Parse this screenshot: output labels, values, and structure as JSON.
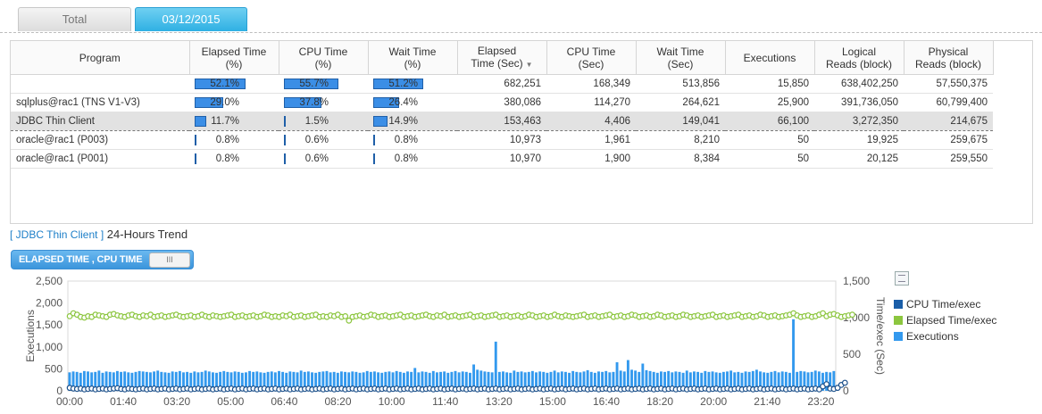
{
  "tabs": [
    {
      "label": "Total"
    },
    {
      "label": "03/12/2015"
    }
  ],
  "table": {
    "columns": [
      "Program",
      "Elapsed Time\n(%)",
      "CPU Time\n(%)",
      "Wait Time\n(%)",
      "Elapsed\nTime (Sec)",
      "CPU Time\n(Sec)",
      "Wait Time\n(Sec)",
      "Executions",
      "Logical\nReads (block)",
      "Physical\nReads (block)"
    ],
    "rows": [
      {
        "program": "",
        "elapsed_pct": "52.1%",
        "elapsed_frac": 0.521,
        "cpu_pct": "55.7%",
        "cpu_frac": 0.557,
        "wait_pct": "51.2%",
        "wait_frac": 0.512,
        "elapsed_sec": "682,251",
        "cpu_sec": "168,349",
        "wait_sec": "513,856",
        "executions": "15,850",
        "logical": "638,402,250",
        "physical": "57,550,375"
      },
      {
        "program": "sqlplus@rac1 (TNS V1-V3)",
        "elapsed_pct": "29.0%",
        "elapsed_frac": 0.29,
        "cpu_pct": "37.8%",
        "cpu_frac": 0.378,
        "wait_pct": "26.4%",
        "wait_frac": 0.264,
        "elapsed_sec": "380,086",
        "cpu_sec": "114,270",
        "wait_sec": "264,621",
        "executions": "25,900",
        "logical": "391,736,050",
        "physical": "60,799,400"
      },
      {
        "program": "JDBC Thin Client",
        "elapsed_pct": "11.7%",
        "elapsed_frac": 0.117,
        "cpu_pct": "1.5%",
        "cpu_frac": 0.015,
        "wait_pct": "14.9%",
        "wait_frac": 0.149,
        "elapsed_sec": "153,463",
        "cpu_sec": "4,406",
        "wait_sec": "149,041",
        "executions": "66,100",
        "logical": "3,272,350",
        "physical": "214,675"
      },
      {
        "program": "oracle@rac1 (P003)",
        "elapsed_pct": "0.8%",
        "elapsed_frac": 0.008,
        "cpu_pct": "0.6%",
        "cpu_frac": 0.006,
        "wait_pct": "0.8%",
        "wait_frac": 0.008,
        "elapsed_sec": "10,973",
        "cpu_sec": "1,961",
        "wait_sec": "8,210",
        "executions": "50",
        "logical": "19,925",
        "physical": "259,675"
      },
      {
        "program": "oracle@rac1 (P001)",
        "elapsed_pct": "0.8%",
        "elapsed_frac": 0.008,
        "cpu_pct": "0.6%",
        "cpu_frac": 0.006,
        "wait_pct": "0.8%",
        "wait_frac": 0.008,
        "elapsed_sec": "10,970",
        "cpu_sec": "1,900",
        "wait_sec": "8,384",
        "executions": "50",
        "logical": "20,125",
        "physical": "259,550"
      }
    ],
    "selected_row": 2
  },
  "trend": {
    "context": "[ JDBC Thin Client ]",
    "title": "24-Hours Trend",
    "toggle_label": "ELAPSED TIME , CPU TIME",
    "toggle_knob": "III"
  },
  "chart_data": {
    "type": "bar",
    "x_ticks": [
      "00:00",
      "01:40",
      "03:20",
      "05:00",
      "06:40",
      "08:20",
      "10:00",
      "11:40",
      "13:20",
      "15:00",
      "16:40",
      "18:20",
      "20:00",
      "21:40",
      "23:20"
    ],
    "y_left": {
      "label": "Executions",
      "ticks": [
        "0",
        "500",
        "1,000",
        "1,500",
        "2,000",
        "2,500"
      ],
      "range": [
        0,
        2500
      ]
    },
    "y_right": {
      "label": "Time/exec (Sec)",
      "ticks": [
        "0",
        "500",
        "1,000",
        "1,500"
      ],
      "range": [
        0,
        1500
      ]
    },
    "legend": [
      {
        "name": "CPU Time/exec",
        "color": "#1a5ea8"
      },
      {
        "name": "Elapsed Time/exec",
        "color": "#8cc63f"
      },
      {
        "name": "Executions",
        "color": "#3399ee"
      }
    ],
    "executions": [
      420,
      440,
      430,
      410,
      450,
      440,
      420,
      430,
      460,
      410,
      440,
      430,
      420,
      450,
      430,
      440,
      420,
      410,
      430,
      450,
      440,
      430,
      420,
      440,
      460,
      430,
      420,
      410,
      440,
      430,
      450,
      420,
      430,
      410,
      440,
      420,
      430,
      460,
      440,
      420,
      410,
      430,
      450,
      430,
      420,
      440,
      430,
      410,
      420,
      450,
      430,
      440,
      420,
      410,
      430,
      440,
      420,
      450,
      430,
      410,
      440,
      430,
      420,
      460,
      430,
      440,
      420,
      410,
      430,
      440,
      450,
      420,
      430,
      410,
      440,
      430,
      420,
      440,
      430,
      410,
      420,
      450,
      430,
      440,
      420,
      410,
      430,
      440,
      420,
      450,
      430,
      410,
      440,
      430,
      520,
      420,
      440,
      430,
      410,
      450,
      420,
      430,
      440,
      410,
      430,
      450,
      420,
      440,
      430,
      410,
      600,
      480,
      460,
      440,
      430,
      420,
      1120,
      430,
      440,
      420,
      410,
      460,
      430,
      440,
      420,
      430,
      450,
      420,
      440,
      430,
      410,
      430,
      460,
      420,
      440,
      430,
      410,
      450,
      430,
      420,
      440,
      470,
      430,
      410,
      440,
      430,
      450,
      420,
      430,
      650,
      460,
      440,
      700,
      480,
      460,
      430,
      620,
      470,
      450,
      430,
      410,
      440,
      430,
      450,
      420,
      440,
      430,
      410,
      460,
      420,
      440,
      430,
      410,
      450,
      430,
      440,
      420,
      410,
      430,
      440,
      460,
      420,
      430,
      410,
      440,
      430,
      450,
      480,
      440,
      420,
      410,
      430,
      450,
      420,
      440,
      430,
      410,
      1630,
      430,
      450,
      440,
      420,
      430,
      460,
      440,
      410,
      430,
      420,
      450
    ],
    "elapsed_time_per_exec": [
      1020,
      1060,
      1040,
      1010,
      1000,
      1020,
      1010,
      1040,
      1030,
      1020,
      1010,
      1040,
      1050,
      1030,
      1020,
      1010,
      1030,
      1040,
      1020,
      1010,
      1030,
      1020,
      1040,
      1010,
      1020,
      1030,
      1010,
      1020,
      1030,
      1040,
      1020,
      1010,
      1020,
      1030,
      1010,
      1020,
      1040,
      1020,
      1010,
      1030,
      1020,
      1010,
      1020,
      1030,
      1040,
      1010,
      1020,
      1030,
      1010,
      1020,
      1030,
      1010,
      1020,
      1040,
      1030,
      1010,
      1020,
      1010,
      1030,
      1020,
      1040,
      1010,
      1020,
      1030,
      1010,
      1020,
      1030,
      1040,
      1010,
      1020,
      1010,
      1030,
      1020,
      1040,
      1010,
      1020,
      960,
      1010,
      1020,
      1030,
      1010,
      1020,
      1040,
      1030,
      1010,
      1020,
      1030,
      1010,
      1020,
      1030,
      1040,
      1010,
      1020,
      1030,
      1010,
      1020,
      1030,
      1040,
      1020,
      1010,
      1030,
      1020,
      1040,
      1010,
      1020,
      1030,
      1010,
      1020,
      1030,
      1040,
      1010,
      1020,
      1030,
      1010,
      1020,
      1030,
      1040,
      1010,
      1020,
      1030,
      1010,
      1020,
      1030,
      1010,
      1020,
      1040,
      1030,
      1010,
      1020,
      1030,
      1010,
      1020,
      1040,
      1020,
      1010,
      1030,
      1020,
      1010,
      1020,
      1030,
      1040,
      1010,
      1020,
      1030,
      1010,
      1020,
      1030,
      1040,
      1010,
      1020,
      1030,
      1010,
      1020,
      1040,
      1030,
      1010,
      1020,
      1030,
      1010,
      1020,
      1040,
      1030,
      1010,
      1020,
      1030,
      1010,
      1020,
      1040,
      1030,
      1010,
      1020,
      1030,
      1010,
      1020,
      1030,
      1040,
      1010,
      1020,
      1030,
      1010,
      1020,
      1030,
      1040,
      1010,
      1020,
      1030,
      1010,
      1020,
      1040,
      1030,
      1010,
      1020,
      1030,
      1010,
      1020,
      1030,
      1040,
      1060,
      1030,
      1010,
      1020,
      1030,
      1010,
      1020,
      1040,
      1060,
      1020,
      1040,
      1050,
      1030,
      1010,
      1020,
      1030,
      1040
    ],
    "cpu_time_per_exec": [
      40,
      30,
      25,
      30,
      20,
      25,
      30,
      20,
      25,
      30,
      20,
      25,
      30,
      35,
      25,
      20,
      30,
      25,
      20,
      25,
      30,
      20,
      25,
      30,
      20,
      25,
      30,
      20,
      25,
      30,
      20,
      25,
      30,
      20,
      25,
      30,
      20,
      25,
      30,
      20,
      25,
      30,
      20,
      25,
      30,
      20,
      25,
      30,
      20,
      25,
      30,
      20,
      25,
      30,
      20,
      25,
      30,
      20,
      25,
      30,
      20,
      25,
      30,
      20,
      25,
      30,
      20,
      25,
      30,
      20,
      25,
      30,
      20,
      25,
      30,
      20,
      25,
      30,
      20,
      25,
      30,
      20,
      25,
      30,
      20,
      25,
      30,
      20,
      25,
      30,
      20,
      25,
      30,
      20,
      25,
      30,
      20,
      25,
      30,
      20,
      25,
      30,
      20,
      25,
      30,
      20,
      25,
      30,
      20,
      25,
      30,
      20,
      25,
      30,
      20,
      25,
      30,
      20,
      25,
      30,
      20,
      25,
      30,
      20,
      25,
      30,
      20,
      25,
      30,
      20,
      25,
      30,
      20,
      25,
      30,
      20,
      25,
      30,
      20,
      25,
      30,
      20,
      25,
      30,
      20,
      25,
      30,
      20,
      25,
      30,
      20,
      25,
      30,
      20,
      25,
      30,
      20,
      25,
      30,
      20,
      25,
      30,
      20,
      25,
      30,
      20,
      25,
      30,
      20,
      25,
      30,
      20,
      25,
      30,
      20,
      25,
      30,
      20,
      25,
      30,
      20,
      25,
      30,
      20,
      25,
      30,
      20,
      25,
      30,
      20,
      25,
      30,
      20,
      25,
      30,
      20,
      25,
      30,
      20,
      25,
      30,
      20,
      25,
      30,
      20,
      60,
      90,
      30,
      25,
      40,
      80,
      110
    ]
  }
}
